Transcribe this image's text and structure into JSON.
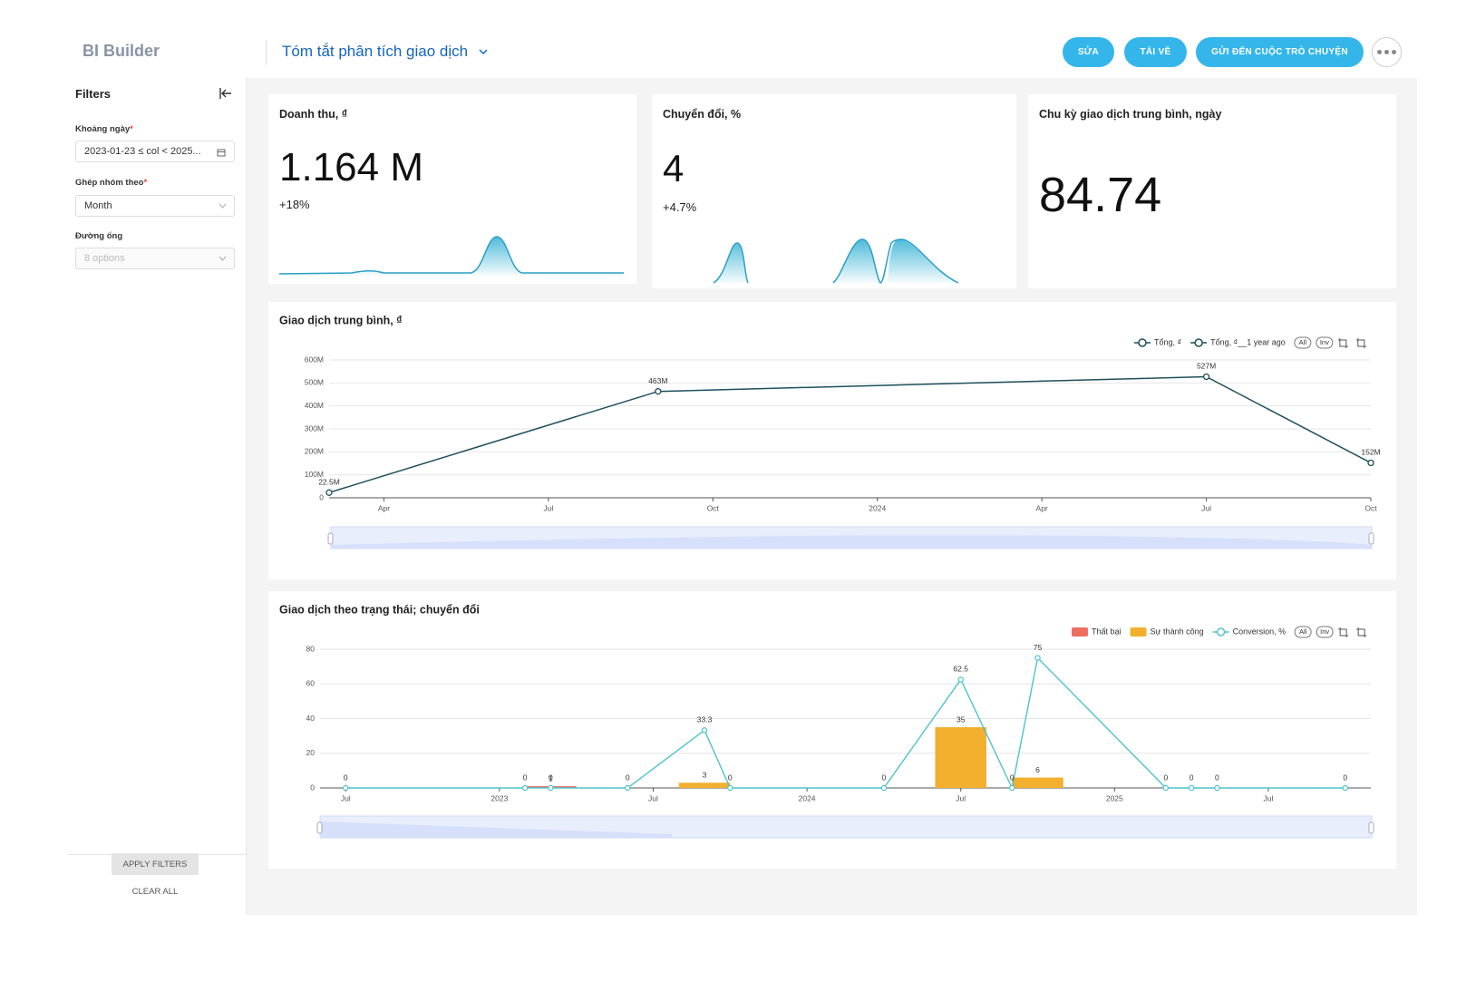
{
  "sidebar": {
    "logo": "BI Builder",
    "filters_title": "Filters",
    "filters": [
      {
        "label": "Khoảng ngày",
        "required": "*",
        "value": "2023-01-23 ≤ col < 2025..."
      },
      {
        "label": "Ghép nhóm theo",
        "required": "*",
        "value": "Month"
      },
      {
        "label": "Đường ống",
        "placeholder": "8 options"
      }
    ],
    "apply": "APPLY FILTERS",
    "clear": "CLEAR ALL"
  },
  "header": {
    "title": "Tóm tắt phân tích giao dịch",
    "buttons": [
      "SỬA",
      "TẢI VỀ",
      "GỬI ĐẾN CUỘC TRÒ CHUYỆN"
    ]
  },
  "kpis": [
    {
      "title": "Doanh thu, ₫",
      "value": "1.164 M",
      "delta": "+18%"
    },
    {
      "title": "Chuyển đổi, %",
      "value": "4",
      "delta": "+4.7%"
    },
    {
      "title": "Chu kỳ giao dịch trung bình, ngày",
      "value": "84.74"
    }
  ],
  "charts": [
    {
      "type": "line",
      "title": "Giao dịch trung bình, ₫",
      "legend": [
        "Tổng, ₫",
        "Tổng, ₫__1 year ago"
      ],
      "toggles": [
        "All",
        "Inv"
      ],
      "x": [
        "2023-03",
        "2023-09",
        "2024-07",
        "2024-10"
      ],
      "series": [
        {
          "name": "Tổng, ₫",
          "color": "#1f4f5b",
          "values": [
            22500000,
            463000000,
            527000000,
            152000000
          ],
          "value_labels": [
            "22.5M",
            "463M",
            "527M",
            "152M"
          ]
        }
      ],
      "xlim": [
        "2023-03",
        "2024-10"
      ],
      "xticks": [
        {
          "value": "2023-04",
          "label": "Apr"
        },
        {
          "value": "2023-07",
          "label": "Jul"
        },
        {
          "value": "2023-10",
          "label": "Oct"
        },
        {
          "value": "2024-01",
          "label": "2024"
        },
        {
          "value": "2024-04",
          "label": "Apr"
        },
        {
          "value": "2024-07",
          "label": "Jul"
        },
        {
          "value": "2024-10",
          "label": "Oct"
        }
      ],
      "ylim": [
        0,
        600000000
      ],
      "yticks": [
        0,
        {
          "value": 100000000,
          "label": "100M"
        },
        {
          "value": 200000000,
          "label": "200M"
        },
        {
          "value": 300000000,
          "label": "300M"
        },
        {
          "value": 400000000,
          "label": "400M"
        },
        {
          "value": 500000000,
          "label": "500M"
        },
        {
          "value": 600000000,
          "label": "600M"
        }
      ],
      "grid": true
    },
    {
      "type": "combo",
      "title": "Giao dịch theo trạng thái; chuyển đổi",
      "toggles": [
        "All",
        "Inv"
      ],
      "x": [
        "2022-07",
        "2023-02",
        "2023-03",
        "2023-06",
        "2023-09",
        "2023-10",
        "2024-04",
        "2024-07",
        "2024-09",
        "2024-10",
        "2025-03",
        "2025-04",
        "2025-05",
        "2025-10"
      ],
      "series": [
        {
          "name": "Thất bại",
          "kind": "bar",
          "color": "#ec6f5f",
          "values": [
            null,
            null,
            1,
            null,
            null,
            null,
            null,
            null,
            null,
            null,
            null,
            null,
            null,
            null
          ]
        },
        {
          "name": "Sự thành công",
          "kind": "bar",
          "color": "#f2b02e",
          "values": [
            null,
            null,
            null,
            null,
            3,
            null,
            null,
            35,
            null,
            6,
            null,
            null,
            null,
            null
          ]
        },
        {
          "name": "Conversion, %",
          "kind": "line",
          "color": "#4cc3cf",
          "values": [
            0,
            0,
            0,
            0,
            33.3,
            0,
            0,
            62.5,
            0,
            75,
            0,
            0,
            0,
            0
          ]
        }
      ],
      "xlim": [
        "2022-06",
        "2025-11"
      ],
      "xticks": [
        {
          "value": "2022-07",
          "label": "Jul"
        },
        {
          "value": "2023-01",
          "label": "2023"
        },
        {
          "value": "2023-07",
          "label": "Jul"
        },
        {
          "value": "2024-01",
          "label": "2024"
        },
        {
          "value": "2024-07",
          "label": "Jul"
        },
        {
          "value": "2025-01",
          "label": "2025"
        },
        {
          "value": "2025-07",
          "label": "Jul"
        }
      ],
      "ylim": [
        0,
        80
      ],
      "yticks": [
        0,
        20,
        40,
        60,
        80
      ],
      "grid": true
    }
  ]
}
